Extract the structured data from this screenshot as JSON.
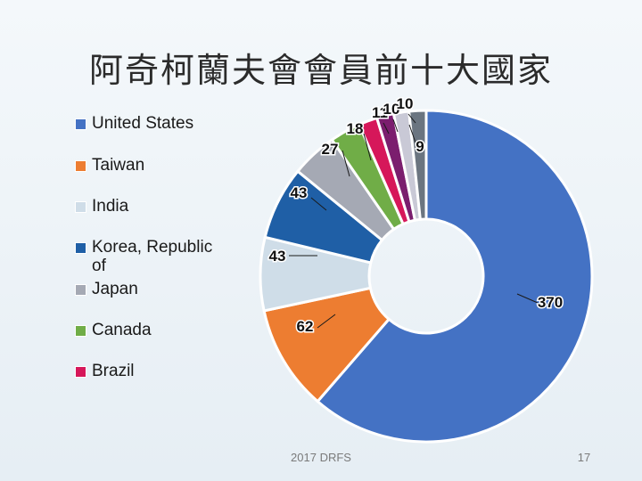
{
  "slide": {
    "title": "阿奇柯蘭夫會會員前十大國家",
    "footer": "2017 DRFS",
    "page_number": "17"
  },
  "chart_data": {
    "type": "pie",
    "style": "donut",
    "legend_position": "left",
    "series": [
      {
        "name": "United States",
        "value": 370,
        "label": "370",
        "color": "#4472C4",
        "in_legend": true
      },
      {
        "name": "Taiwan",
        "value": 62,
        "label": "62",
        "color": "#ED7D31",
        "in_legend": true
      },
      {
        "name": "India",
        "value": 43,
        "label": "43",
        "color": "#CFDDE8",
        "in_legend": true
      },
      {
        "name": "Korea, Republic of",
        "value": 43,
        "label": "43",
        "color": "#1F5FA6",
        "in_legend": true
      },
      {
        "name": "Japan",
        "value": 27,
        "label": "27",
        "color": "#A5A9B4",
        "in_legend": true
      },
      {
        "name": "Canada",
        "value": 18,
        "label": "18",
        "color": "#70AD47",
        "in_legend": true
      },
      {
        "name": "Brazil",
        "value": 11,
        "label": "11",
        "color": "#D6175A",
        "in_legend": true
      },
      {
        "name": "",
        "value": 10,
        "label": "10",
        "color": "#7B1E6E",
        "in_legend": false
      },
      {
        "name": "",
        "value": 9,
        "label": "9",
        "color": "#C9C9D6",
        "in_legend": false
      },
      {
        "name": "",
        "value": 10,
        "label": "10",
        "color": "#6B7580",
        "in_legend": false
      }
    ]
  }
}
